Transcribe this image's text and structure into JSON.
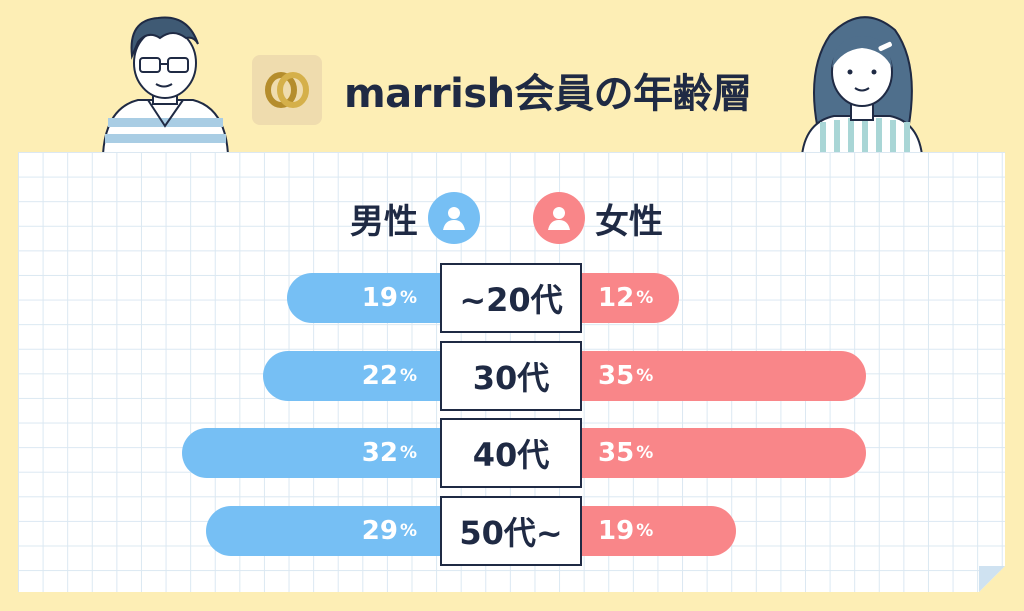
{
  "title": "marrish会員の年齢層",
  "legend": {
    "male": "男性",
    "female": "女性"
  },
  "colors": {
    "male": "#76bff4",
    "female": "#f98689",
    "background": "#fdeeb5",
    "text": "#1f2a44"
  },
  "icons": {
    "logo": "double-ring-logo-icon",
    "male": "person-icon",
    "female": "person-icon"
  },
  "chart_data": {
    "type": "bar",
    "orientation": "horizontal-diverging",
    "title": "marrish会員の年齢層",
    "categories": [
      "~20代",
      "30代",
      "40代",
      "50代~"
    ],
    "unit": "%",
    "series": [
      {
        "name": "男性",
        "values": [
          19,
          22,
          32,
          29
        ]
      },
      {
        "name": "女性",
        "values": [
          12,
          35,
          35,
          19
        ]
      }
    ],
    "labels": {
      "male": [
        "19",
        "22",
        "32",
        "29"
      ],
      "female": [
        "12",
        "35",
        "35",
        "19"
      ]
    },
    "legend_position": "top-center",
    "grid": true
  }
}
